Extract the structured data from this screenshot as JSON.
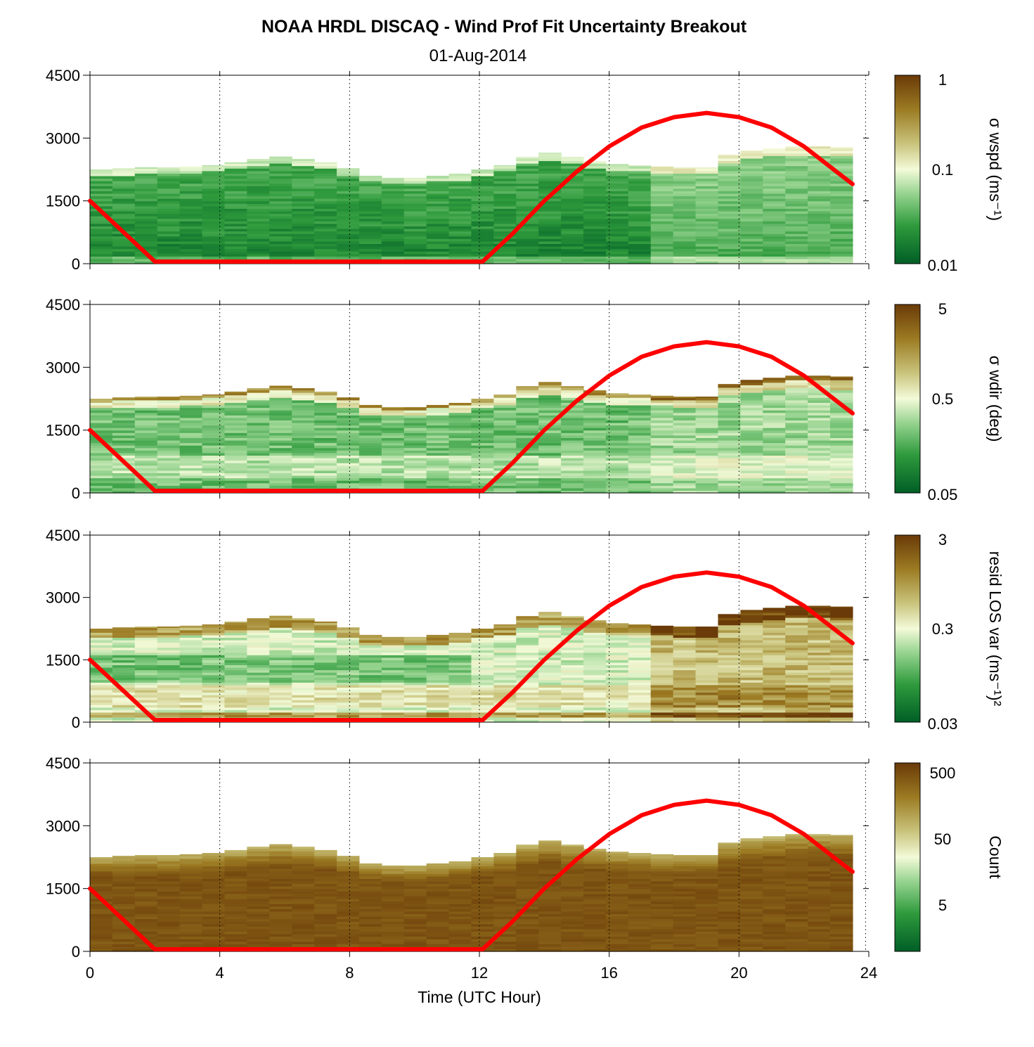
{
  "title": "NOAA HRDL DISCAQ - Wind Prof Fit Uncertainty Breakout",
  "subtitle": "01-Aug-2014",
  "colors": {
    "colormap": [
      "#005e26",
      "#2e9a3c",
      "#8fd08a",
      "#f3fad8",
      "#c8c27a",
      "#9b7a22",
      "#6a3a08"
    ],
    "overlay_line": "#ff0000",
    "grid": "#000000"
  },
  "chart_data": {
    "type": "heatmap",
    "xlabel": "Time (UTC Hour)",
    "xlim": [
      0,
      24
    ],
    "xticks": [
      0,
      4,
      8,
      12,
      16,
      20,
      24
    ],
    "x_tick_labels": [
      "0",
      "4",
      "8",
      "12",
      "16",
      "20",
      "24"
    ],
    "x_grid": [
      4,
      8,
      12,
      16,
      20
    ],
    "x_grid_style": "dotted",
    "ylim": [
      0,
      4500
    ],
    "yticks": [
      0,
      1500,
      3000,
      4500
    ],
    "y_tick_labels": [
      "0",
      "1500",
      "3000",
      "4500"
    ],
    "data_top_height": [
      2250,
      2280,
      2300,
      2300,
      2320,
      2350,
      2420,
      2500,
      2560,
      2500,
      2420,
      2280,
      2100,
      2050,
      2050,
      2100,
      2150,
      2250,
      2350,
      2550,
      2650,
      2550,
      2450,
      2380,
      2350,
      2320,
      2300,
      2300,
      2600,
      2700,
      2750,
      2800,
      2800,
      2780
    ],
    "overlay_series": {
      "note": "",
      "x": [
        0,
        2,
        12.1,
        13,
        14,
        15,
        16,
        17,
        18,
        19,
        20,
        21,
        22,
        23,
        23.5
      ],
      "y": [
        1500,
        50,
        50,
        700,
        1500,
        2200,
        2800,
        3250,
        3500,
        3600,
        3500,
        3250,
        2800,
        2200,
        1900
      ]
    },
    "panels": [
      {
        "colorbar_label": "σ wspd (ms⁻¹)",
        "colorbar_ticks": [
          "0.01",
          "0.1",
          "1"
        ],
        "colorbar_scale": "log",
        "colorbar_range": [
          0.01,
          1
        ],
        "level_description": "mostly dark green (low values) below the data top"
      },
      {
        "colorbar_label": "σ wdir (deg)",
        "colorbar_ticks": [
          "0.05",
          "0.5",
          "5"
        ],
        "colorbar_scale": "log",
        "colorbar_range": [
          0.05,
          5
        ],
        "level_description": "green core with pale and brown layers near the top"
      },
      {
        "colorbar_label": "resid LOS var (ms⁻¹)²",
        "colorbar_ticks": [
          "0.03",
          "0.3",
          "3"
        ],
        "colorbar_scale": "log",
        "colorbar_range": [
          0.03,
          3
        ],
        "level_description": "pale/green at night, brown in the afternoon"
      },
      {
        "colorbar_label": "Count",
        "colorbar_ticks": [
          "5",
          "50",
          "500"
        ],
        "colorbar_scale": "log",
        "colorbar_range": [
          1,
          700
        ],
        "level_description": "nearly uniform brown (high counts)"
      }
    ]
  }
}
